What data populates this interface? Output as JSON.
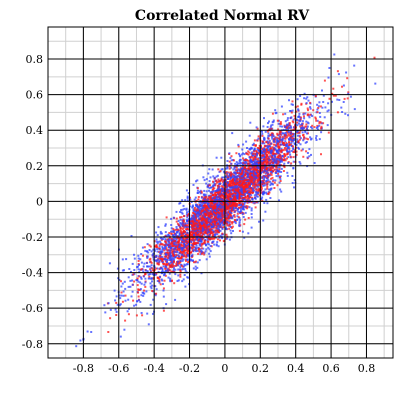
{
  "chart_data": {
    "type": "scatter",
    "title": "Correlated Normal RV",
    "xlabel": "",
    "ylabel": "",
    "xlim": [
      -1,
      0.95
    ],
    "ylim": [
      -0.88,
      0.98
    ],
    "x_ticks": [
      -0.8,
      -0.6,
      -0.4,
      -0.2,
      0,
      0.2,
      0.4,
      0.6,
      0.8
    ],
    "x_tick_labels": [
      "-0.8",
      "-0.6",
      "-0.4",
      "-0.2",
      "0",
      "0.2",
      "0.4",
      "0.6",
      "0.8"
    ],
    "y_ticks": [
      -0.8,
      -0.6,
      -0.4,
      -0.2,
      0,
      0.2,
      0.4,
      0.6,
      0.8
    ],
    "y_tick_labels": [
      "-0.8",
      "-0.6",
      "-0.4",
      "-0.2",
      "0",
      "0.2",
      "0.4",
      "0.6",
      "0.8"
    ],
    "minor_grid_step": 0.1,
    "grid": true,
    "legend": "none",
    "series": [
      {
        "color": "#3344ff",
        "distribution": "bivariate normal",
        "mean": [
          0,
          0
        ],
        "std_x": 0.25,
        "std_y": 0.25,
        "correlation": 0.92
      },
      {
        "color": "#ff1a1a",
        "distribution": "bivariate normal",
        "mean": [
          0,
          0
        ],
        "std_x": 0.21,
        "std_y": 0.21,
        "correlation": 0.93
      }
    ]
  }
}
